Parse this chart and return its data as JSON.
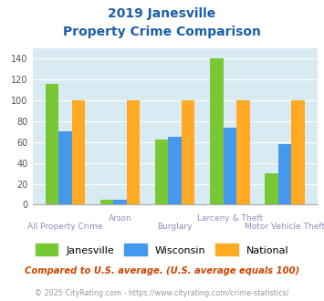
{
  "title_line1": "2019 Janesville",
  "title_line2": "Property Crime Comparison",
  "categories_top": [
    "",
    "Arson",
    "",
    "Larceny & Theft",
    ""
  ],
  "categories_bottom": [
    "All Property Crime",
    "",
    "Burglary",
    "",
    "Motor Vehicle Theft"
  ],
  "janesville": [
    116,
    5,
    62,
    140,
    30
  ],
  "wisconsin": [
    70,
    5,
    65,
    74,
    58
  ],
  "national": [
    100,
    100,
    100,
    100,
    100
  ],
  "color_janesville": "#77c832",
  "color_wisconsin": "#4499ee",
  "color_national": "#ffaa22",
  "ylim": [
    0,
    150
  ],
  "yticks": [
    0,
    20,
    40,
    60,
    80,
    100,
    120,
    140
  ],
  "plot_bg": "#d8eaf2",
  "title_color": "#1a5fa8",
  "xlabel_color_top": "#9988bb",
  "xlabel_color_bottom": "#9988bb",
  "legend_labels": [
    "Janesville",
    "Wisconsin",
    "National"
  ],
  "footnote1": "Compared to U.S. average. (U.S. average equals 100)",
  "footnote2": "© 2025 CityRating.com - https://www.cityrating.com/crime-statistics/",
  "footnote1_color": "#cc4400",
  "footnote2_color": "#999999",
  "bar_width": 0.24,
  "grid_color": "#ffffff"
}
